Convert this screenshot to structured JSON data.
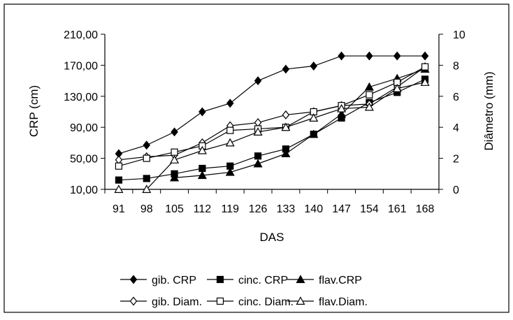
{
  "chart_data": {
    "type": "line",
    "title": "",
    "xlabel": "DAS",
    "ylabel_left": "CRP (cm)",
    "ylabel_right": "Diâmetro (mm)",
    "x": [
      91,
      98,
      105,
      112,
      119,
      126,
      133,
      140,
      147,
      154,
      161,
      168
    ],
    "x_tick_labels": [
      "91",
      "98",
      "105",
      "112",
      "119",
      "126",
      "133",
      "140",
      "147",
      "154",
      "161",
      "168"
    ],
    "y_left": {
      "lim": [
        10,
        210
      ],
      "ticks": [
        10,
        50,
        90,
        130,
        170,
        210
      ],
      "tick_labels": [
        "10,00",
        "50,00",
        "90,00",
        "130,00",
        "170,00",
        "210,00"
      ]
    },
    "y_right": {
      "lim": [
        0,
        10
      ],
      "ticks": [
        0,
        2,
        4,
        6,
        8,
        10
      ],
      "tick_labels": [
        "0",
        "2",
        "4",
        "6",
        "8",
        "10"
      ]
    },
    "grid": false,
    "legend_position": "bottom",
    "series": [
      {
        "name": "gib. CRP",
        "axis": "left",
        "marker": "diamond",
        "filled": true,
        "values": [
          56,
          67,
          84,
          110,
          121,
          150,
          165,
          169,
          182,
          182,
          182,
          182
        ]
      },
      {
        "name": "cinc. CRP",
        "axis": "left",
        "marker": "square",
        "filled": true,
        "values": [
          22,
          24,
          30,
          37,
          40,
          53,
          62,
          81,
          102,
          122,
          135,
          152
        ]
      },
      {
        "name": "flav.CRP",
        "axis": "left",
        "marker": "triangle",
        "filled": true,
        "values": null
      },
      {
        "name": "gib. Diam.",
        "axis": "right",
        "marker": "diamond",
        "filled": false,
        "values": null
      },
      {
        "name": "cinc. Diam.",
        "axis": "right",
        "marker": "square",
        "filled": false,
        "values": null
      },
      {
        "name": "flav.Diam.",
        "axis": "right",
        "marker": "triangle",
        "filled": false,
        "values": null
      }
    ]
  }
}
